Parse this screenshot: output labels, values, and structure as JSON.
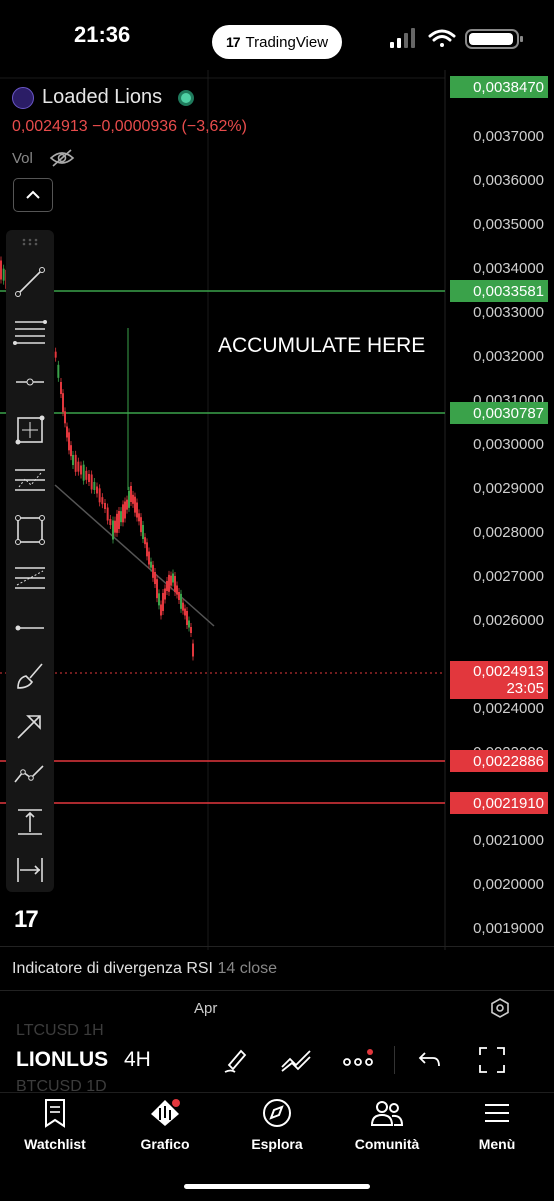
{
  "status_bar": {
    "time": "21:36",
    "pill_label": "TradingView",
    "pill_logo": "17"
  },
  "header": {
    "symbol_name": "Loaded Lions",
    "last": "0,0024913",
    "change": "−0,0000936",
    "change_pct": "(−3,62%)",
    "vol_label": "Vol"
  },
  "price_axis": {
    "ticks": [
      "0,0037000",
      "0,0036000",
      "0,0035000",
      "0,0034000",
      "0,0033000",
      "0,0032000",
      "0,0031000",
      "0,0030000",
      "0,0029000",
      "0,0028000",
      "0,0027000",
      "0,0026000",
      "0,0024000",
      "0,0022000",
      "0,0021000",
      "0,0020000",
      "0,0019000"
    ],
    "tags": {
      "top": "0,0038470",
      "level_high": "0,0033581",
      "level_mid": "0,0030787",
      "current_price": "0,0024913",
      "countdown": "23:05",
      "support_1": "0,0022886",
      "support_2": "0,0021910"
    }
  },
  "annotation_text": "ACCUMULATE HERE",
  "watermark": "17",
  "indicator": {
    "name": "Indicatore di divergenza RSI",
    "params": "14 close"
  },
  "time_axis": {
    "label": "Apr"
  },
  "bottom": {
    "ghost_top": "LTCUSD  1H",
    "ghost_bottom": "BTCUSD  1D",
    "symbol": "LIONLUS",
    "interval": "4H"
  },
  "tabs": [
    {
      "label": "Watchlist",
      "icon": "bookmark-icon"
    },
    {
      "label": "Grafico",
      "icon": "chart-icon"
    },
    {
      "label": "Esplora",
      "icon": "compass-icon"
    },
    {
      "label": "Comunità",
      "icon": "people-icon"
    },
    {
      "label": "Menù",
      "icon": "hamburger-icon"
    }
  ],
  "colors": {
    "up": "#3aa24a",
    "down": "#e2373d",
    "background": "#000000"
  }
}
